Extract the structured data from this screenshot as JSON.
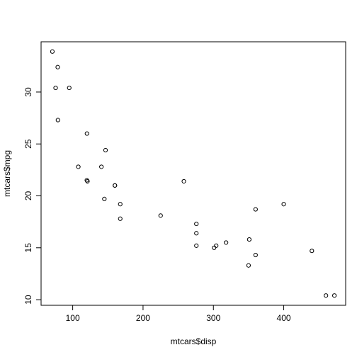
{
  "chart_data": {
    "type": "scatter",
    "xlabel": "mtcars$disp",
    "ylabel": "mtcars$mpg",
    "x": [
      160,
      160,
      108,
      258,
      360,
      225,
      360,
      146.7,
      140.8,
      167.6,
      167.6,
      275.8,
      275.8,
      275.8,
      472,
      460,
      440,
      78.7,
      75.7,
      71.1,
      120.1,
      318,
      304,
      350,
      400,
      79,
      120.3,
      95.1,
      351,
      145,
      301,
      121
    ],
    "values": [
      21.0,
      21.0,
      22.8,
      21.4,
      18.7,
      18.1,
      14.3,
      24.4,
      22.8,
      19.2,
      17.8,
      16.4,
      17.3,
      15.2,
      10.4,
      10.4,
      14.7,
      32.4,
      30.4,
      33.9,
      21.5,
      15.5,
      15.2,
      13.3,
      19.2,
      27.3,
      26.0,
      30.4,
      15.8,
      19.7,
      15.0,
      21.4
    ],
    "color": "#000000",
    "xlim": [
      55.06,
      488.04
    ],
    "xticks": [
      100,
      200,
      300,
      400
    ],
    "ylim": [
      9.46,
      34.84
    ],
    "yticks": [
      10,
      15,
      20,
      25,
      30
    ]
  }
}
